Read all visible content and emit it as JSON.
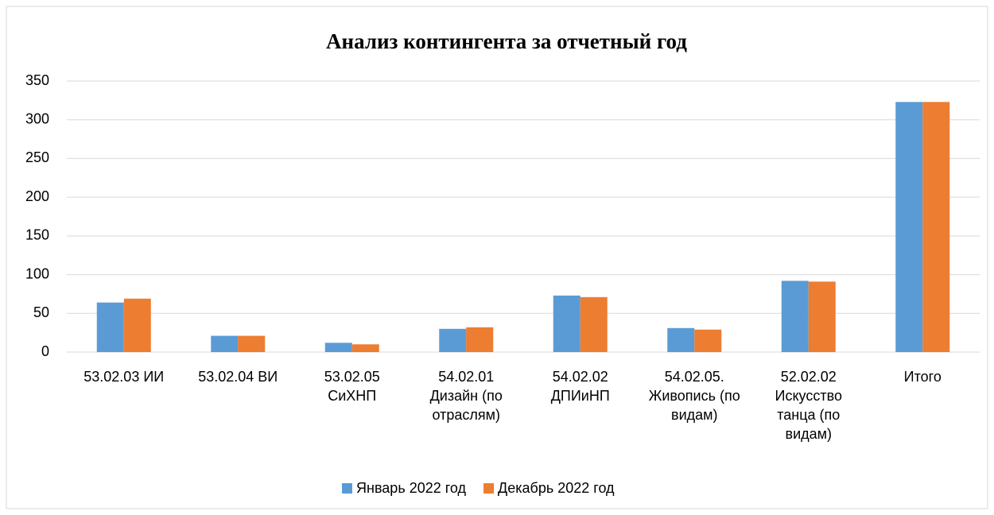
{
  "chart_data": {
    "type": "bar",
    "title": "Анализ контингента за отчетный год",
    "categories": [
      "53.02.03 ИИ",
      "53.02.04 ВИ",
      "53.02.05 СиХНП",
      "54.02.01 Дизайн (по отраслям)",
      "54.02.02 ДПИиНП",
      "54.02.05. Живопись (по видам)",
      "52.02.02 Искусство танца (по видам)",
      "Итого"
    ],
    "series": [
      {
        "name": "Январь 2022 год",
        "color": "#5b9bd5",
        "values": [
          64,
          21,
          12,
          30,
          73,
          31,
          92,
          323
        ]
      },
      {
        "name": "Декабрь 2022 год",
        "color": "#ed7d31",
        "values": [
          69,
          21,
          10,
          32,
          71,
          29,
          91,
          323
        ]
      }
    ],
    "ylim": [
      0,
      350
    ],
    "yticks": [
      0,
      50,
      100,
      150,
      200,
      250,
      300,
      350
    ],
    "grid": true,
    "legend": "bottom"
  }
}
